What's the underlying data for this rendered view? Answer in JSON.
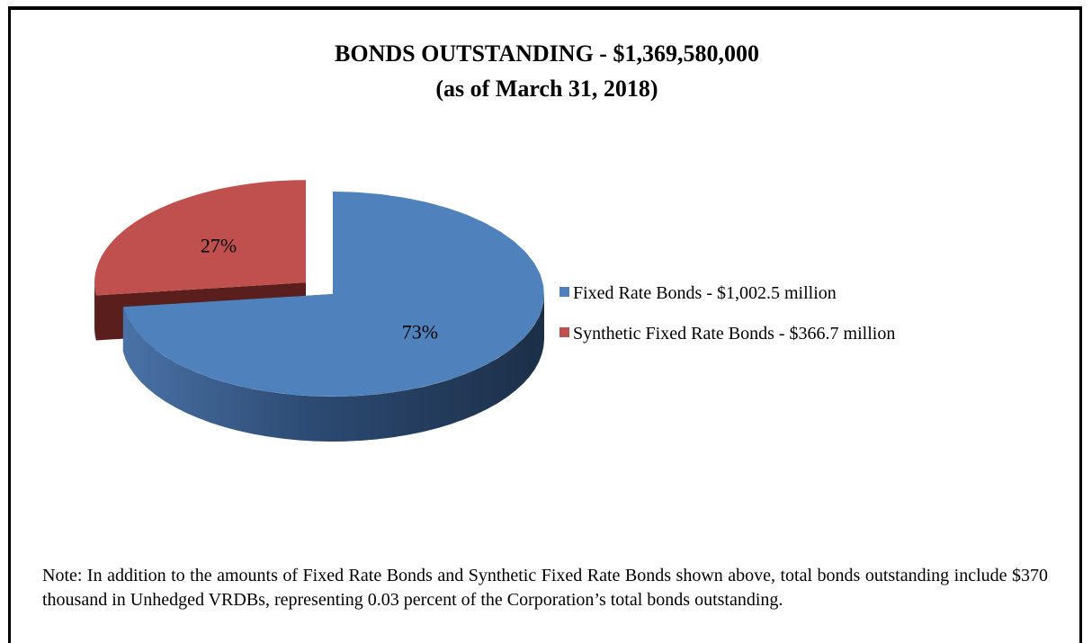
{
  "chart_data": {
    "type": "pie",
    "title": "BONDS OUTSTANDING - $1,369,580,000",
    "subtitle": "(as of March 31, 2018)",
    "categories": [
      "Fixed Rate Bonds - $1,002.5 million",
      "Synthetic Fixed Rate Bonds - $366.7 million"
    ],
    "values": [
      73,
      27
    ],
    "value_labels": [
      "73%",
      "27%"
    ],
    "colors": [
      "#4f81bd",
      "#c0504d"
    ],
    "legend": "right",
    "note": "Note: In addition to the amounts of Fixed Rate Bonds and Synthetic Fixed Rate Bonds shown above, total bonds outstanding include $370 thousand in Unhedged VRDBs, representing 0.03 percent of the Corporation’s total bonds outstanding."
  }
}
